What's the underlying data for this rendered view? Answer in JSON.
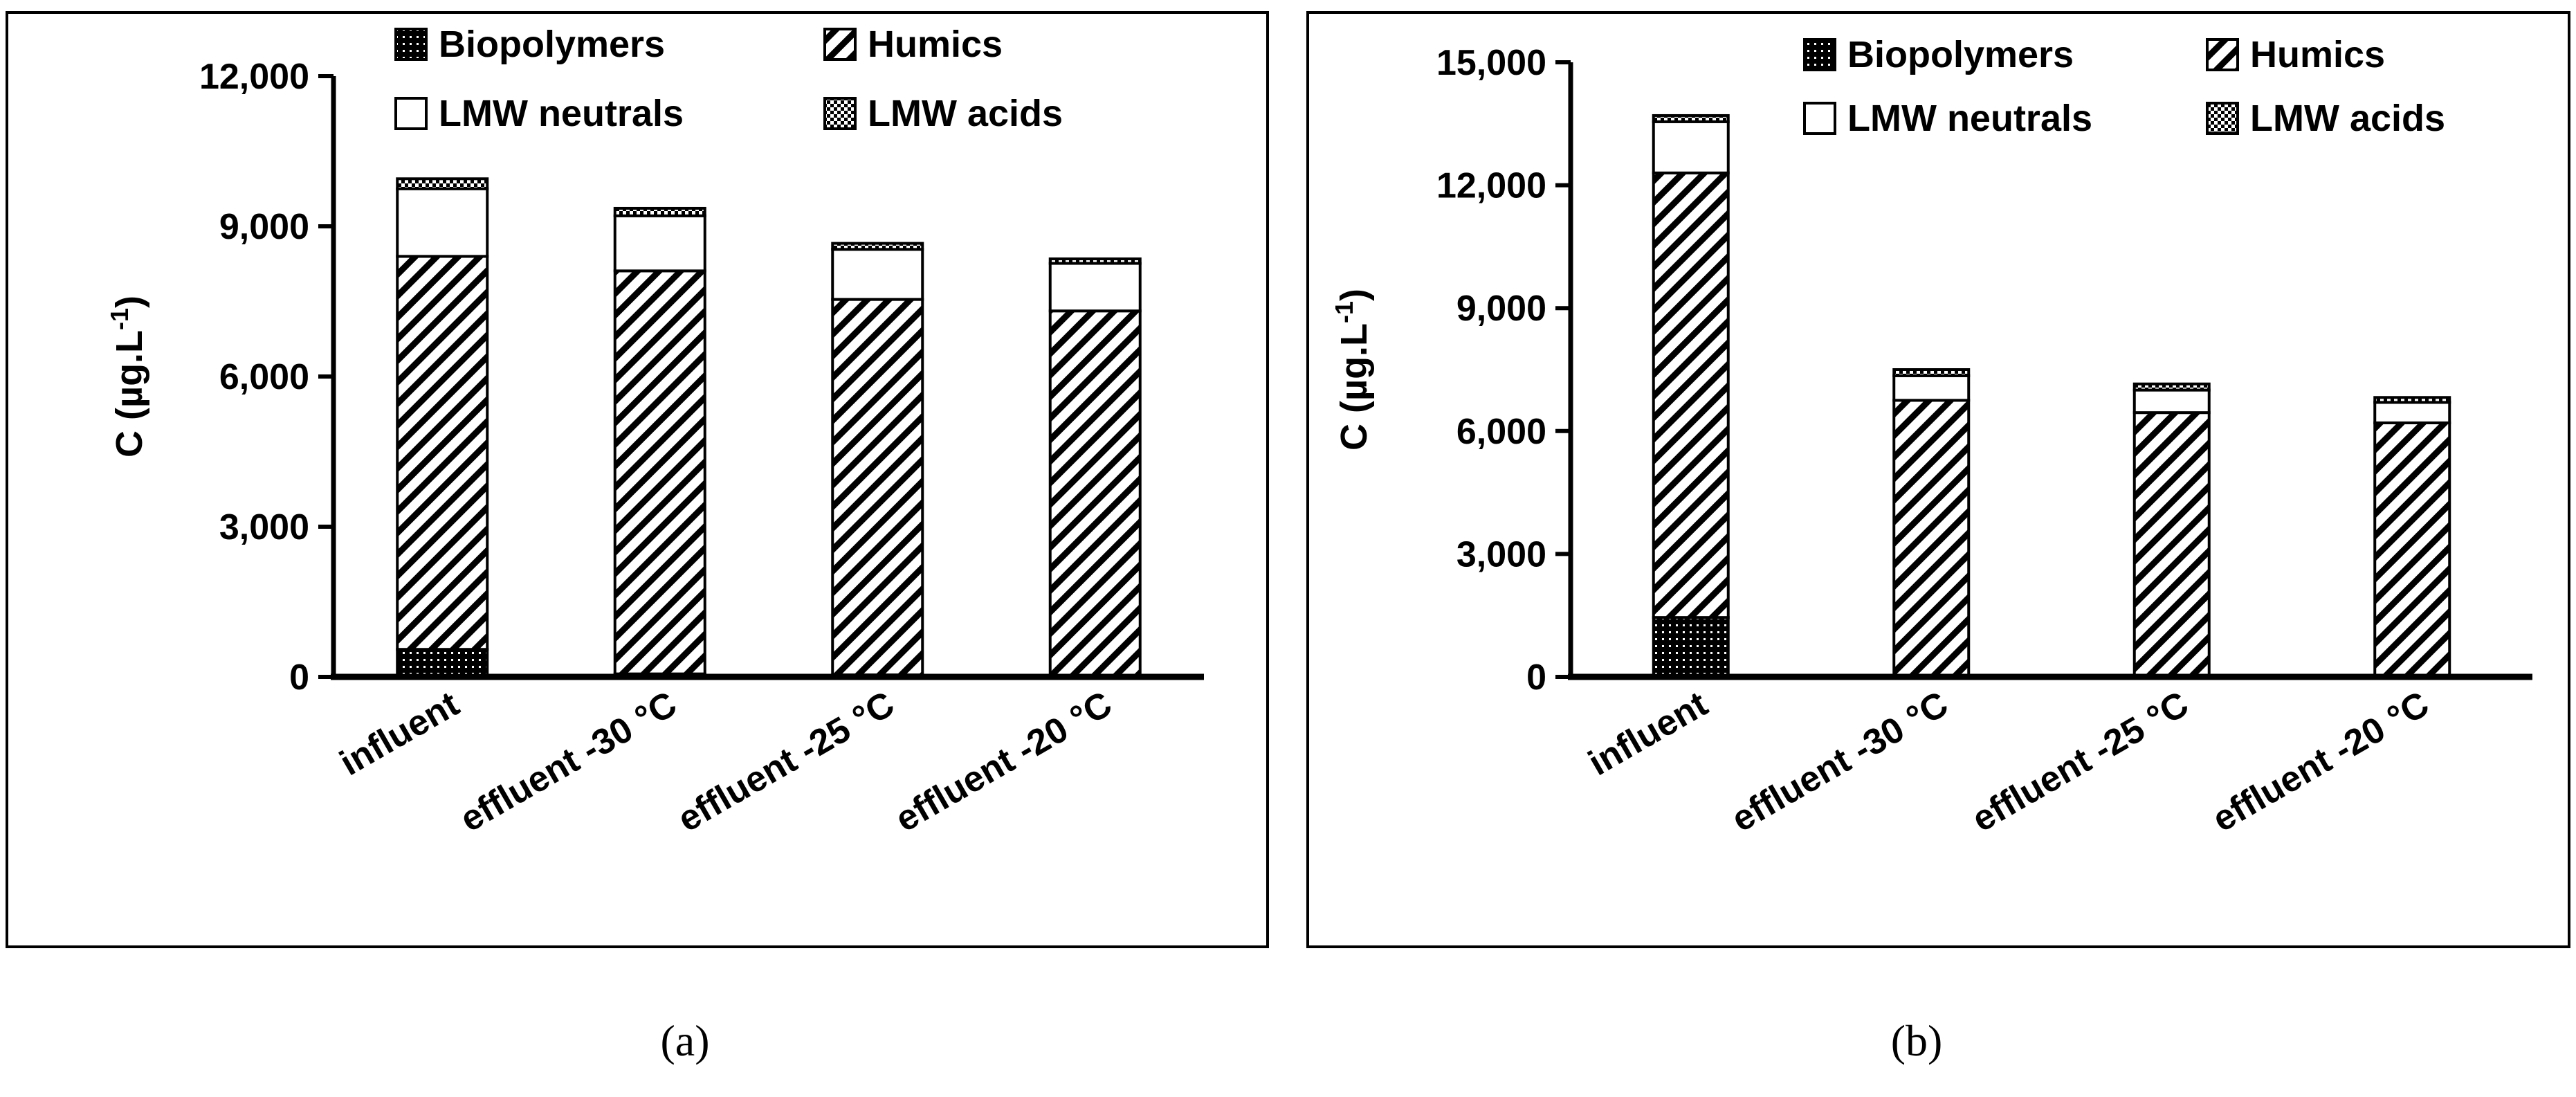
{
  "colors": {
    "ink": "#000000",
    "paper": "#ffffff"
  },
  "chart_data": [
    {
      "panel_label": "(a)",
      "type": "bar",
      "stacked": true,
      "ylabel": "C (µg.L",
      "ylabel_sup": "-1",
      "ylabel_close": ")",
      "ylim": [
        0,
        12000
      ],
      "yticks": [
        "0",
        "3,000",
        "6,000",
        "9,000",
        "12,000"
      ],
      "ytick_values": [
        0,
        3000,
        6000,
        9000,
        12000
      ],
      "categories": [
        "influent",
        "effluent -30 °C",
        "effluent -25 °C",
        "effluent -20 °C"
      ],
      "legend_position": "top",
      "series": [
        {
          "name": "Biopolymers",
          "pattern": "dots",
          "values": [
            550,
            60,
            40,
            30
          ]
        },
        {
          "name": "Humics",
          "pattern": "hatch",
          "values": [
            7850,
            8050,
            7500,
            7280
          ]
        },
        {
          "name": "LMW neutrals",
          "pattern": "white",
          "values": [
            1350,
            1100,
            1000,
            950
          ]
        },
        {
          "name": "LMW acids",
          "pattern": "checker",
          "values": [
            200,
            150,
            120,
            90
          ]
        }
      ]
    },
    {
      "panel_label": "(b)",
      "type": "bar",
      "stacked": true,
      "ylabel": "C (µg.L",
      "ylabel_sup": "-1",
      "ylabel_close": ")",
      "ylim": [
        0,
        15000
      ],
      "yticks": [
        "0",
        "3,000",
        "6,000",
        "9,000",
        "12,000",
        "15,000"
      ],
      "ytick_values": [
        0,
        3000,
        6000,
        9000,
        12000,
        15000
      ],
      "categories": [
        "influent",
        "effluent -30 °C",
        "effluent -25 °C",
        "effluent -20 °C"
      ],
      "legend_position": "top",
      "series": [
        {
          "name": "Biopolymers",
          "pattern": "dots",
          "values": [
            1450,
            0,
            0,
            0
          ]
        },
        {
          "name": "Humics",
          "pattern": "hatch",
          "values": [
            10850,
            6750,
            6450,
            6200
          ]
        },
        {
          "name": "LMW neutrals",
          "pattern": "white",
          "values": [
            1250,
            600,
            550,
            500
          ]
        },
        {
          "name": "LMW acids",
          "pattern": "checker",
          "values": [
            150,
            150,
            150,
            120
          ]
        }
      ]
    }
  ]
}
